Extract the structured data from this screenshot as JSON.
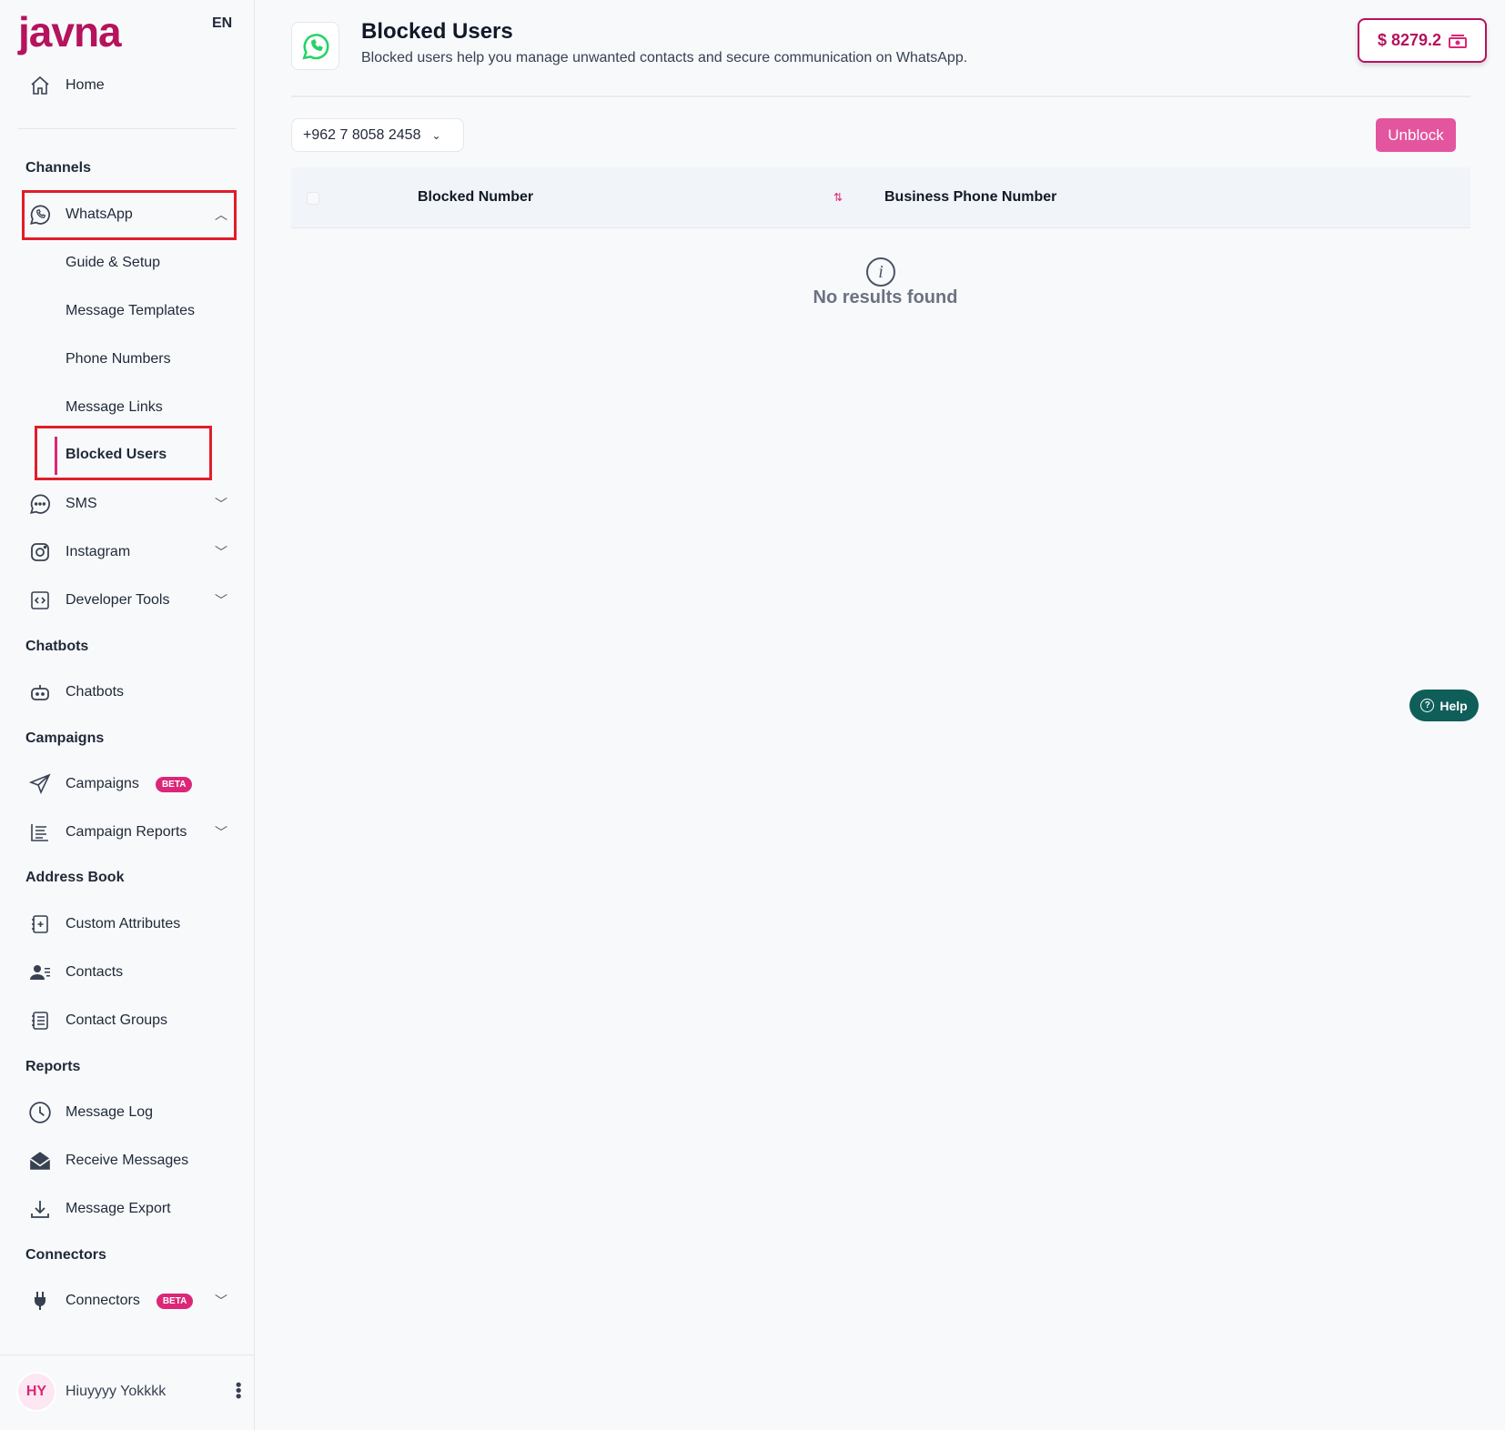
{
  "sidebar": {
    "logo": "javna",
    "lang": "EN",
    "home": "Home",
    "sections": {
      "channels": "Channels",
      "chatbots": "Chatbots",
      "campaigns": "Campaigns",
      "address_book": "Address Book",
      "reports": "Reports",
      "connectors": "Connectors"
    },
    "whatsapp": "WhatsApp",
    "whatsapp_sub": [
      "Guide & Setup",
      "Message Templates",
      "Phone Numbers",
      "Message Links",
      "Blocked Users"
    ],
    "sms": "SMS",
    "instagram": "Instagram",
    "developer_tools": "Developer Tools",
    "chatbots": "Chatbots",
    "campaigns": "Campaigns",
    "beta": "BETA",
    "campaign_reports": "Campaign Reports",
    "custom_attributes": "Custom Attributes",
    "contacts": "Contacts",
    "contact_groups": "Contact Groups",
    "message_log": "Message Log",
    "receive_messages": "Receive Messages",
    "message_export": "Message Export",
    "connectors": "Connectors",
    "user": {
      "initials": "HY",
      "name": "Hiuyyyy Yokkkk"
    }
  },
  "header": {
    "title": "Blocked Users",
    "subtitle": "Blocked users help you manage unwanted contacts and secure communication on WhatsApp.",
    "balance": "$ 8279.2"
  },
  "toolbar": {
    "phone_select": "+962 7 8058 2458",
    "unblock": "Unblock"
  },
  "table": {
    "columns": [
      "Blocked Number",
      "Business Phone Number"
    ],
    "empty": "No results found"
  },
  "help": "Help",
  "colors": {
    "brand": "#b5135d",
    "accent": "#e3559e",
    "whatsapp": "#25d366"
  }
}
